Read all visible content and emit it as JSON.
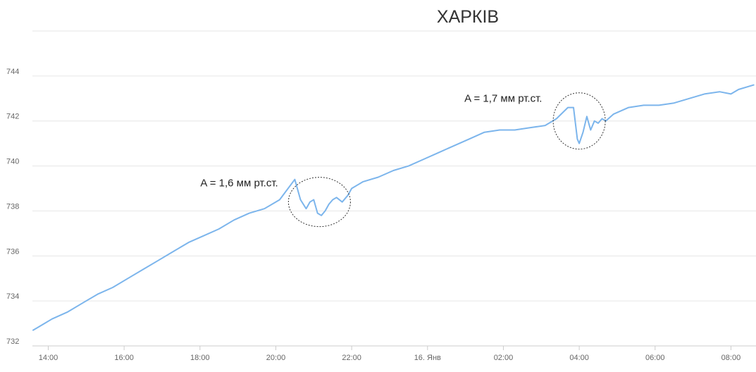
{
  "chart_data": {
    "type": "line",
    "title": "ХАРКІВ",
    "xlabel": "",
    "ylabel": "",
    "ylim": [
      732,
      746
    ],
    "xlim_hours": [
      13.6,
      32.6
    ],
    "grid": true,
    "legend": "none",
    "y_ticks": [
      732,
      734,
      736,
      738,
      740,
      742,
      744
    ],
    "x_ticks": [
      {
        "h": 14,
        "label": "14:00"
      },
      {
        "h": 16,
        "label": "16:00"
      },
      {
        "h": 18,
        "label": "18:00"
      },
      {
        "h": 20,
        "label": "20:00"
      },
      {
        "h": 22,
        "label": "22:00"
      },
      {
        "h": 24,
        "label": "16. Янв"
      },
      {
        "h": 26,
        "label": "02:00"
      },
      {
        "h": 28,
        "label": "04:00"
      },
      {
        "h": 30,
        "label": "06:00"
      },
      {
        "h": 32,
        "label": "08:00"
      }
    ],
    "series": [
      {
        "color": "#7cb5ec",
        "x_hours": [
          13.6,
          13.7,
          13.9,
          14.1,
          14.5,
          14.9,
          15.3,
          15.7,
          16.1,
          16.5,
          16.9,
          17.3,
          17.7,
          18.1,
          18.5,
          18.9,
          19.3,
          19.7,
          20.1,
          20.5,
          20.65,
          20.8,
          20.9,
          21.0,
          21.1,
          21.2,
          21.3,
          21.4,
          21.5,
          21.6,
          21.75,
          21.85,
          21.9,
          22.0,
          22.3,
          22.7,
          23.1,
          23.5,
          23.9,
          24.3,
          24.7,
          25.1,
          25.5,
          25.9,
          26.3,
          26.7,
          27.1,
          27.4,
          27.7,
          27.85,
          27.95,
          28.0,
          28.1,
          28.2,
          28.3,
          28.4,
          28.5,
          28.6,
          28.7,
          28.9,
          29.3,
          29.7,
          30.1,
          30.5,
          30.9,
          31.3,
          31.7,
          32.0,
          32.2,
          32.6
        ],
        "values": [
          732.7,
          732.8,
          733.0,
          733.2,
          733.5,
          733.9,
          734.3,
          734.6,
          735.0,
          735.4,
          735.8,
          736.2,
          736.6,
          736.9,
          737.2,
          737.6,
          737.9,
          738.1,
          738.5,
          739.4,
          738.5,
          738.1,
          738.4,
          738.5,
          737.9,
          737.8,
          738.0,
          738.3,
          738.5,
          738.6,
          738.4,
          738.6,
          738.7,
          739.0,
          739.3,
          739.5,
          739.8,
          740.0,
          740.3,
          740.6,
          740.9,
          741.2,
          741.5,
          741.6,
          741.6,
          741.7,
          741.8,
          742.1,
          742.6,
          742.6,
          741.2,
          741.0,
          741.5,
          742.2,
          741.6,
          742.0,
          741.9,
          742.1,
          742.0,
          742.3,
          742.6,
          742.7,
          742.7,
          742.8,
          743.0,
          743.2,
          743.3,
          743.2,
          743.4,
          743.6
        ]
      }
    ],
    "annotations": [
      {
        "text": "A = 1,6 мм рт.ст.",
        "center_h": 21.15,
        "center_v": 738.4
      },
      {
        "text": "A = 1,7 мм рт.ст.",
        "center_h": 28.0,
        "center_v": 742.0
      }
    ]
  }
}
